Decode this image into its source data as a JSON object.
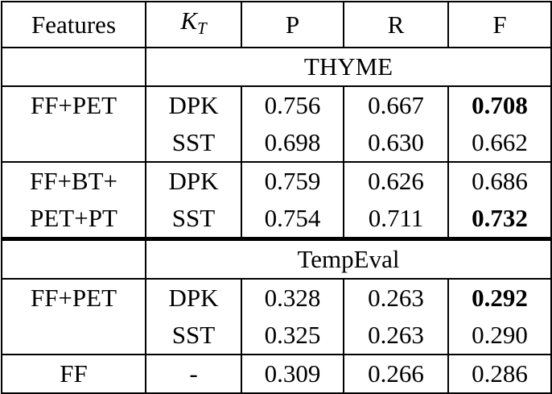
{
  "header": {
    "features": "Features",
    "kt": {
      "base": "K",
      "sub": "T"
    },
    "p": "P",
    "r": "R",
    "f": "F"
  },
  "sections": [
    {
      "title": "THYME",
      "groups": [
        {
          "rows": [
            {
              "features": "FF+PET",
              "kt": "DPK",
              "p": "0.756",
              "r": "0.667",
              "f": "0.708",
              "bold_f": true
            },
            {
              "kt": "SST",
              "p": "0.698",
              "r": "0.630",
              "f": "0.662"
            }
          ]
        },
        {
          "rows": [
            {
              "features": "FF+BT+",
              "kt": "DPK",
              "p": "0.759",
              "r": "0.626",
              "f": "0.686"
            },
            {
              "features": "PET+PT",
              "kt": "SST",
              "p": "0.754",
              "r": "0.711",
              "f": "0.732",
              "bold_f": true
            }
          ]
        }
      ]
    },
    {
      "title": "TempEval",
      "groups": [
        {
          "rows": [
            {
              "features": "FF+PET",
              "kt": "DPK",
              "p": "0.328",
              "r": "0.263",
              "f": "0.292",
              "bold_f": true
            },
            {
              "kt": "SST",
              "p": "0.325",
              "r": "0.263",
              "f": "0.290"
            }
          ]
        },
        {
          "rows": [
            {
              "features": "FF",
              "kt": "-",
              "p": "0.309",
              "r": "0.266",
              "f": "0.286"
            }
          ]
        }
      ]
    }
  ]
}
